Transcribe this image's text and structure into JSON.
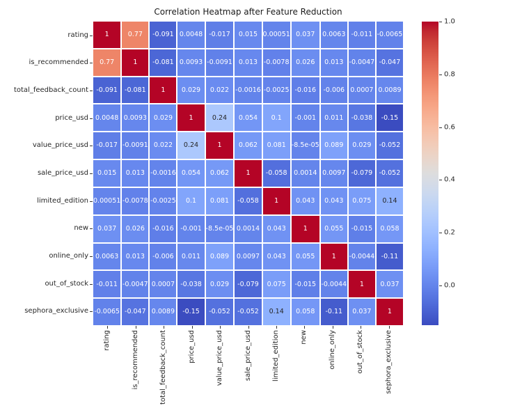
{
  "chart_data": {
    "type": "heatmap",
    "title": "Correlation Heatmap after Feature Reduction",
    "labels": [
      "rating",
      "is_recommended",
      "total_feedback_count",
      "price_usd",
      "value_price_usd",
      "sale_price_usd",
      "limited_edition",
      "new",
      "online_only",
      "out_of_stock",
      "sephora_exclusive"
    ],
    "matrix": [
      [
        "1",
        "0.77",
        "-0.091",
        "0.0048",
        "-0.017",
        "0.015",
        "0.00051",
        "0.037",
        "0.0063",
        "-0.011",
        "-0.0065"
      ],
      [
        "0.77",
        "1",
        "-0.081",
        "0.0093",
        "-0.0091",
        "0.013",
        "-0.0078",
        "0.026",
        "0.013",
        "-0.0047",
        "-0.047"
      ],
      [
        "-0.091",
        "-0.081",
        "1",
        "0.029",
        "0.022",
        "-0.0016",
        "-0.0025",
        "-0.016",
        "-0.006",
        "0.0007",
        "0.0089"
      ],
      [
        "0.0048",
        "0.0093",
        "0.029",
        "1",
        "0.24",
        "0.054",
        "0.1",
        "-0.001",
        "0.011",
        "-0.038",
        "-0.15"
      ],
      [
        "-0.017",
        "-0.0091",
        "0.022",
        "0.24",
        "1",
        "0.062",
        "0.081",
        "-8.5e-05",
        "0.089",
        "0.029",
        "-0.052"
      ],
      [
        "0.015",
        "0.013",
        "-0.0016",
        "0.054",
        "0.062",
        "1",
        "-0.058",
        "0.0014",
        "0.0097",
        "-0.079",
        "-0.052"
      ],
      [
        "0.00051",
        "-0.0078",
        "-0.0025",
        "0.1",
        "0.081",
        "-0.058",
        "1",
        "0.043",
        "0.043",
        "0.075",
        "0.14"
      ],
      [
        "0.037",
        "0.026",
        "-0.016",
        "-0.001",
        "-8.5e-05",
        "0.0014",
        "0.043",
        "1",
        "0.055",
        "-0.015",
        "0.058"
      ],
      [
        "0.0063",
        "0.013",
        "-0.006",
        "0.011",
        "0.089",
        "0.0097",
        "0.043",
        "0.055",
        "1",
        "-0.0044",
        "-0.11"
      ],
      [
        "-0.011",
        "-0.0047",
        "0.0007",
        "-0.038",
        "0.029",
        "-0.079",
        "0.075",
        "-0.015",
        "-0.0044",
        "1",
        "0.037"
      ],
      [
        "-0.0065",
        "-0.047",
        "0.0089",
        "-0.15",
        "-0.052",
        "-0.052",
        "0.14",
        "0.058",
        "-0.11",
        "0.037",
        "1"
      ]
    ],
    "colormap": {
      "name": "coolwarm",
      "vmin": -0.15,
      "vmax": 1.0,
      "min_color": "#3b4cc0",
      "mid_color": "#dddddd",
      "max_color": "#b40426"
    },
    "colorbar_ticks": [
      "1.0",
      "0.8",
      "0.6",
      "0.4",
      "0.2",
      "0.0"
    ],
    "legend_position": "right-colorbar",
    "grid": "white-cell-borders",
    "cell_gap_color": "#ffffff",
    "background": "#ffffff",
    "axis_text_color": "#262626",
    "annotation_colors": {
      "light": "#ffffff",
      "dark": "#262626"
    }
  }
}
